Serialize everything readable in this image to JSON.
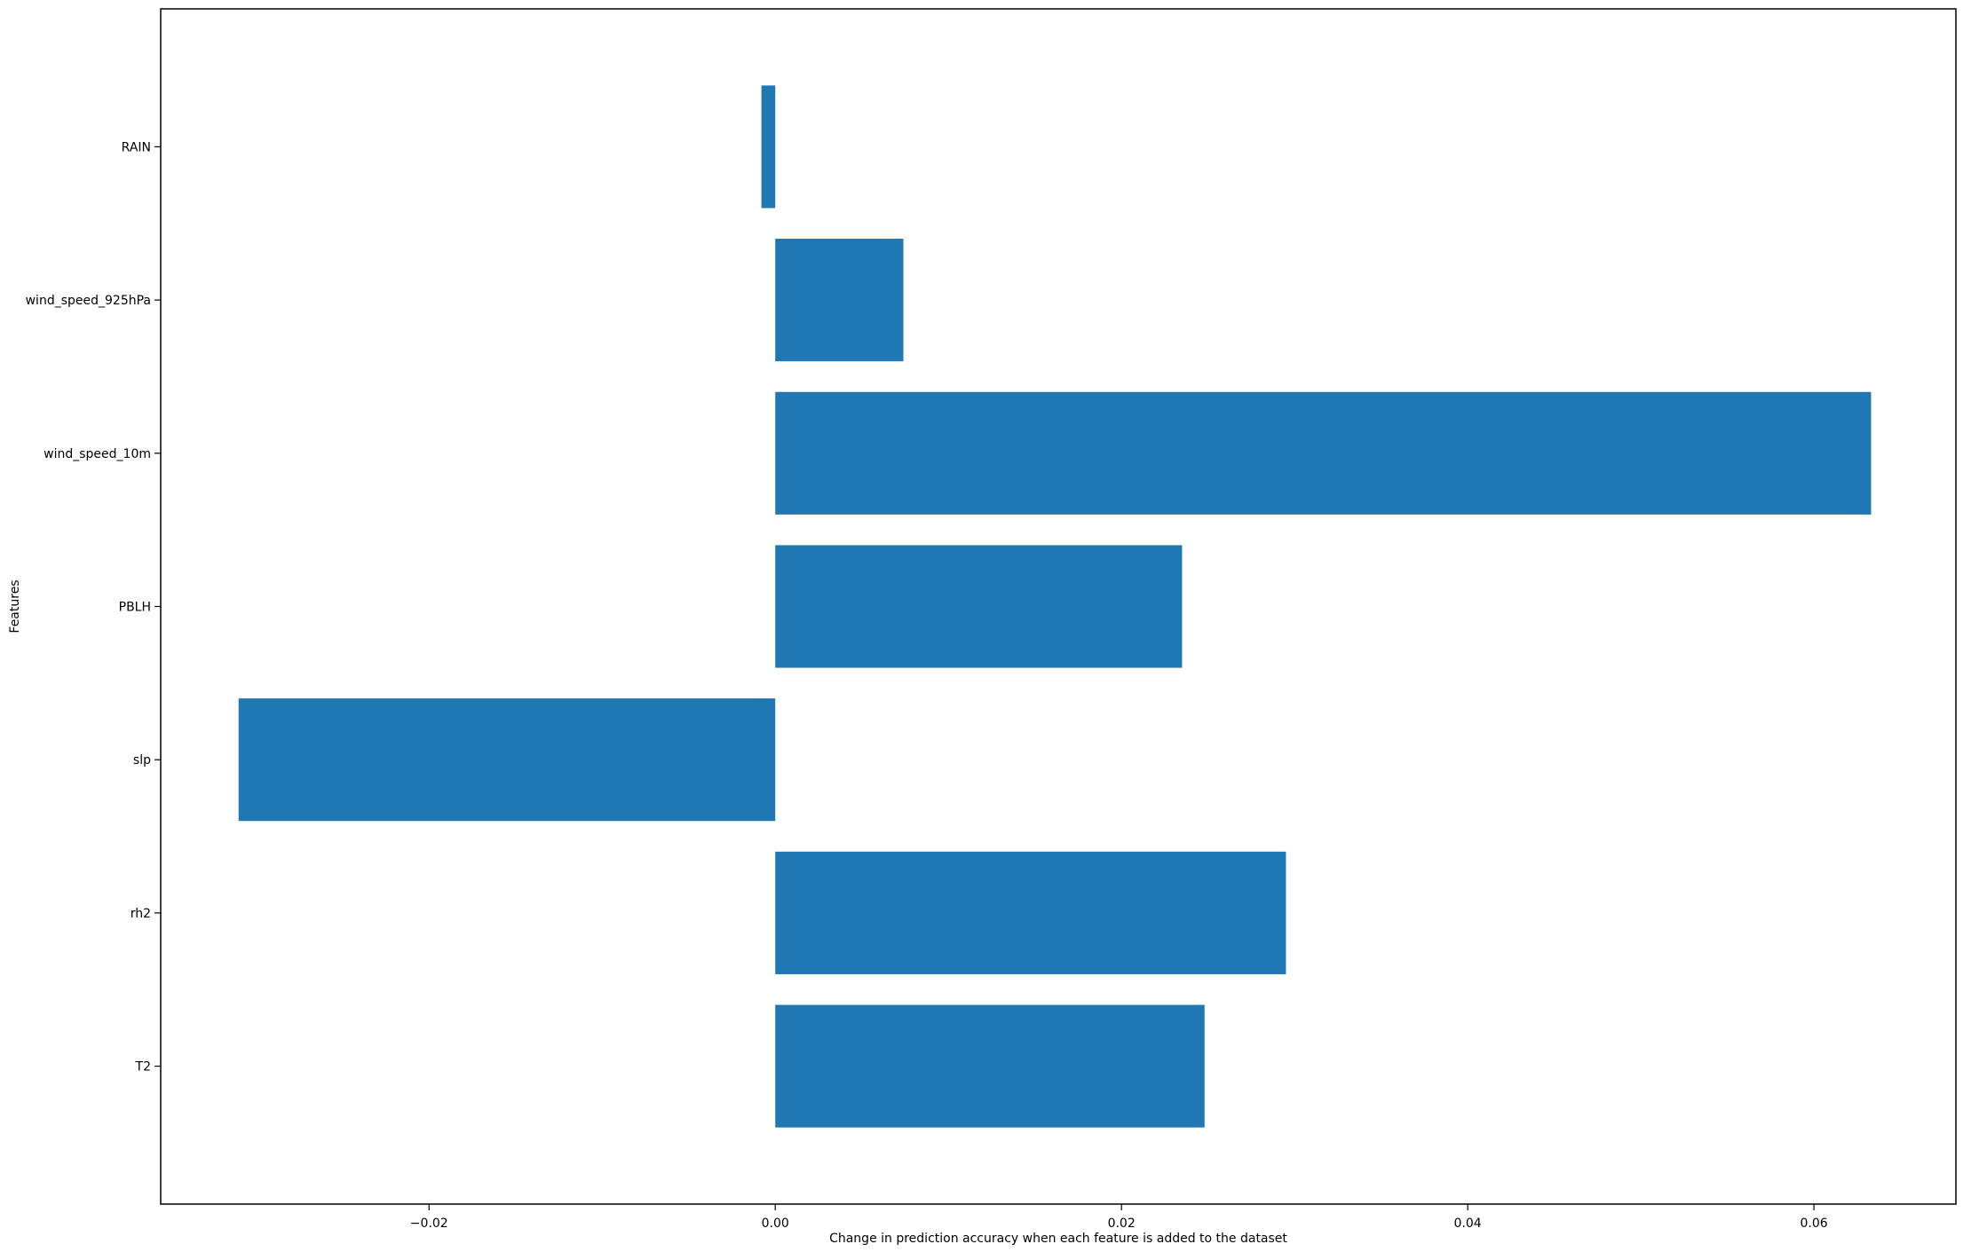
{
  "chart_data": {
    "type": "bar",
    "orientation": "horizontal",
    "categories": [
      "T2",
      "rh2",
      "slp",
      "PBLH",
      "wind_speed_10m",
      "wind_speed_925hPa",
      "RAIN"
    ],
    "values": [
      0.0248,
      0.0295,
      -0.031,
      0.0235,
      0.0633,
      0.0074,
      -0.0008
    ],
    "xlabel": "Change in prediction accuracy when each feature is added to the dataset",
    "ylabel": "Features",
    "xlim": [
      -0.0355,
      0.0682
    ],
    "xticks": [
      -0.02,
      0.0,
      0.02,
      0.04,
      0.06
    ],
    "xtick_labels": [
      "−0.02",
      "0.00",
      "0.02",
      "0.04",
      "0.06"
    ],
    "bar_color": "#1f77b4",
    "grid": false
  }
}
